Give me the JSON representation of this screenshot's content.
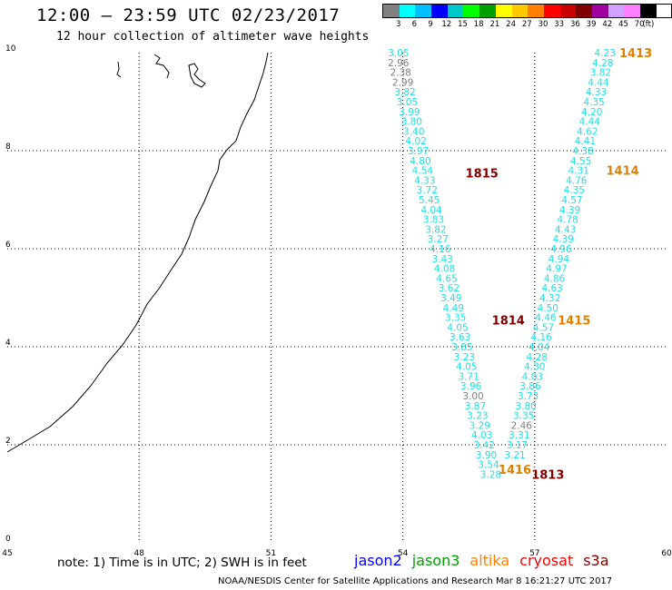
{
  "header": {
    "title": "12:00 – 23:59 UTC 02/23/2017",
    "subtitle": "12 hour collection of altimeter wave heights"
  },
  "legend": {
    "colors": [
      "#808080",
      "#00ffff",
      "#00bfff",
      "#0000ff",
      "#00c8c8",
      "#00ff00",
      "#00a000",
      "#ffff00",
      "#ffc800",
      "#ff8000",
      "#ff0000",
      "#c80000",
      "#800000",
      "#a000a0",
      "#d2a0ff",
      "#ff80ff",
      "#000000"
    ],
    "labels": [
      "3",
      "6",
      "9",
      "12",
      "15",
      "18",
      "21",
      "24",
      "27",
      "30",
      "33",
      "36",
      "39",
      "42",
      "45",
      "70",
      "(ft)"
    ]
  },
  "map": {
    "x_ticks": [
      "45",
      "48",
      "51",
      "54",
      "57",
      "60"
    ],
    "y_ticks": [
      "0",
      "2",
      "4",
      "6",
      "8",
      "10"
    ],
    "x_range": [
      45,
      60
    ],
    "y_range": [
      0,
      10
    ],
    "track_color": "#22e0e0",
    "alt_color": "#808080",
    "time_colors": {
      "cryosat": "#800000",
      "altika": "#e08000"
    },
    "tracks": [
      {
        "name": "track-west",
        "points": [
          {
            "lon": 53.9,
            "lat": 10.0,
            "v": "3.05",
            "c": "cyan"
          },
          {
            "lon": 53.9,
            "lat": 9.8,
            "v": "2.96",
            "c": "gray"
          },
          {
            "lon": 53.95,
            "lat": 9.6,
            "v": "2.38",
            "c": "gray"
          },
          {
            "lon": 54.0,
            "lat": 9.4,
            "v": "2.99",
            "c": "gray"
          },
          {
            "lon": 54.05,
            "lat": 9.2,
            "v": "3.82",
            "c": "cyan"
          },
          {
            "lon": 54.1,
            "lat": 9.0,
            "v": "3.05",
            "c": "cyan"
          },
          {
            "lon": 54.15,
            "lat": 8.8,
            "v": "3.99",
            "c": "cyan"
          },
          {
            "lon": 54.2,
            "lat": 8.6,
            "v": "3.80",
            "c": "cyan"
          },
          {
            "lon": 54.25,
            "lat": 8.4,
            "v": "3.40",
            "c": "cyan"
          },
          {
            "lon": 54.3,
            "lat": 8.2,
            "v": "4.02",
            "c": "cyan"
          },
          {
            "lon": 54.35,
            "lat": 8.0,
            "v": "3.97",
            "c": "cyan"
          },
          {
            "lon": 54.4,
            "lat": 7.8,
            "v": "4.80",
            "c": "cyan"
          },
          {
            "lon": 54.45,
            "lat": 7.6,
            "v": "4.54",
            "c": "cyan"
          },
          {
            "lon": 54.5,
            "lat": 7.4,
            "v": "4.33",
            "c": "cyan"
          },
          {
            "lon": 54.55,
            "lat": 7.2,
            "v": "3.72",
            "c": "cyan"
          },
          {
            "lon": 54.6,
            "lat": 7.0,
            "v": "5.45",
            "c": "cyan"
          },
          {
            "lon": 54.65,
            "lat": 6.8,
            "v": "4.04",
            "c": "cyan"
          },
          {
            "lon": 54.7,
            "lat": 6.6,
            "v": "3.83",
            "c": "cyan"
          },
          {
            "lon": 54.75,
            "lat": 6.4,
            "v": "3.82",
            "c": "cyan"
          },
          {
            "lon": 54.8,
            "lat": 6.2,
            "v": "3.27",
            "c": "cyan"
          },
          {
            "lon": 54.85,
            "lat": 6.0,
            "v": "4.16",
            "c": "cyan"
          },
          {
            "lon": 54.9,
            "lat": 5.8,
            "v": "3.43",
            "c": "cyan"
          },
          {
            "lon": 54.95,
            "lat": 5.6,
            "v": "4.08",
            "c": "cyan"
          },
          {
            "lon": 55.0,
            "lat": 5.4,
            "v": "4.65",
            "c": "cyan"
          },
          {
            "lon": 55.05,
            "lat": 5.2,
            "v": "3.62",
            "c": "cyan"
          },
          {
            "lon": 55.1,
            "lat": 5.0,
            "v": "3.49",
            "c": "cyan"
          },
          {
            "lon": 55.15,
            "lat": 4.8,
            "v": "4.49",
            "c": "cyan"
          },
          {
            "lon": 55.2,
            "lat": 4.6,
            "v": "3.35",
            "c": "cyan"
          },
          {
            "lon": 55.25,
            "lat": 4.4,
            "v": "4.05",
            "c": "cyan"
          },
          {
            "lon": 55.3,
            "lat": 4.2,
            "v": "3.63",
            "c": "cyan"
          },
          {
            "lon": 55.35,
            "lat": 4.0,
            "v": "3.85",
            "c": "cyan"
          },
          {
            "lon": 55.4,
            "lat": 3.8,
            "v": "3.23",
            "c": "cyan"
          },
          {
            "lon": 55.45,
            "lat": 3.6,
            "v": "4.05",
            "c": "cyan"
          },
          {
            "lon": 55.5,
            "lat": 3.4,
            "v": "3.71",
            "c": "cyan"
          },
          {
            "lon": 55.55,
            "lat": 3.2,
            "v": "3.96",
            "c": "cyan"
          },
          {
            "lon": 55.6,
            "lat": 3.0,
            "v": "3.00",
            "c": "gray"
          },
          {
            "lon": 55.65,
            "lat": 2.8,
            "v": "3.87",
            "c": "cyan"
          },
          {
            "lon": 55.7,
            "lat": 2.6,
            "v": "3.23",
            "c": "cyan"
          },
          {
            "lon": 55.75,
            "lat": 2.4,
            "v": "3.29",
            "c": "cyan"
          },
          {
            "lon": 55.8,
            "lat": 2.2,
            "v": "4.03",
            "c": "cyan"
          },
          {
            "lon": 55.85,
            "lat": 2.0,
            "v": "3.42",
            "c": "cyan"
          },
          {
            "lon": 55.9,
            "lat": 1.8,
            "v": "3.90",
            "c": "cyan"
          },
          {
            "lon": 55.95,
            "lat": 1.6,
            "v": "3.54",
            "c": "cyan"
          },
          {
            "lon": 56.0,
            "lat": 1.4,
            "v": "3.28",
            "c": "cyan"
          }
        ]
      },
      {
        "name": "track-east",
        "points": [
          {
            "lon": 58.6,
            "lat": 10.0,
            "v": "4.23",
            "c": "cyan"
          },
          {
            "lon": 58.55,
            "lat": 9.8,
            "v": "4.28",
            "c": "cyan"
          },
          {
            "lon": 58.5,
            "lat": 9.6,
            "v": "3.82",
            "c": "cyan"
          },
          {
            "lon": 58.45,
            "lat": 9.4,
            "v": "4.44",
            "c": "cyan"
          },
          {
            "lon": 58.4,
            "lat": 9.2,
            "v": "4.33",
            "c": "cyan"
          },
          {
            "lon": 58.35,
            "lat": 9.0,
            "v": "4.35",
            "c": "cyan"
          },
          {
            "lon": 58.3,
            "lat": 8.8,
            "v": "4.20",
            "c": "cyan"
          },
          {
            "lon": 58.25,
            "lat": 8.6,
            "v": "4.44",
            "c": "cyan"
          },
          {
            "lon": 58.2,
            "lat": 8.4,
            "v": "4.62",
            "c": "cyan"
          },
          {
            "lon": 58.15,
            "lat": 8.2,
            "v": "4.41",
            "c": "cyan"
          },
          {
            "lon": 58.1,
            "lat": 8.0,
            "v": "4.38",
            "c": "cyan"
          },
          {
            "lon": 58.05,
            "lat": 7.8,
            "v": "4.55",
            "c": "cyan"
          },
          {
            "lon": 58.0,
            "lat": 7.6,
            "v": "4.31",
            "c": "cyan"
          },
          {
            "lon": 57.95,
            "lat": 7.4,
            "v": "4.76",
            "c": "cyan"
          },
          {
            "lon": 57.9,
            "lat": 7.2,
            "v": "4.35",
            "c": "cyan"
          },
          {
            "lon": 57.85,
            "lat": 7.0,
            "v": "4.57",
            "c": "cyan"
          },
          {
            "lon": 57.8,
            "lat": 6.8,
            "v": "4.39",
            "c": "cyan"
          },
          {
            "lon": 57.75,
            "lat": 6.6,
            "v": "4.78",
            "c": "cyan"
          },
          {
            "lon": 57.7,
            "lat": 6.4,
            "v": "4.43",
            "c": "cyan"
          },
          {
            "lon": 57.65,
            "lat": 6.2,
            "v": "4.39",
            "c": "cyan"
          },
          {
            "lon": 57.6,
            "lat": 6.0,
            "v": "4.96",
            "c": "cyan"
          },
          {
            "lon": 57.55,
            "lat": 5.8,
            "v": "4.94",
            "c": "cyan"
          },
          {
            "lon": 57.5,
            "lat": 5.6,
            "v": "4.97",
            "c": "cyan"
          },
          {
            "lon": 57.45,
            "lat": 5.4,
            "v": "4.86",
            "c": "cyan"
          },
          {
            "lon": 57.4,
            "lat": 5.2,
            "v": "4.63",
            "c": "cyan"
          },
          {
            "lon": 57.35,
            "lat": 5.0,
            "v": "4.32",
            "c": "cyan"
          },
          {
            "lon": 57.3,
            "lat": 4.8,
            "v": "4.50",
            "c": "cyan"
          },
          {
            "lon": 57.25,
            "lat": 4.6,
            "v": "4.46",
            "c": "cyan"
          },
          {
            "lon": 57.2,
            "lat": 4.4,
            "v": "4.57",
            "c": "cyan"
          },
          {
            "lon": 57.15,
            "lat": 4.2,
            "v": "4.16",
            "c": "cyan"
          },
          {
            "lon": 57.1,
            "lat": 4.0,
            "v": "4.04",
            "c": "cyan"
          },
          {
            "lon": 57.05,
            "lat": 3.8,
            "v": "4.28",
            "c": "cyan"
          },
          {
            "lon": 57.0,
            "lat": 3.6,
            "v": "4.30",
            "c": "cyan"
          },
          {
            "lon": 56.95,
            "lat": 3.4,
            "v": "4.03",
            "c": "cyan"
          },
          {
            "lon": 56.9,
            "lat": 3.2,
            "v": "3.86",
            "c": "cyan"
          },
          {
            "lon": 56.85,
            "lat": 3.0,
            "v": "3.73",
            "c": "cyan"
          },
          {
            "lon": 56.8,
            "lat": 2.8,
            "v": "3.80",
            "c": "cyan"
          },
          {
            "lon": 56.75,
            "lat": 2.6,
            "v": "3.35",
            "c": "cyan"
          },
          {
            "lon": 56.7,
            "lat": 2.4,
            "v": "2.46",
            "c": "gray"
          },
          {
            "lon": 56.65,
            "lat": 2.2,
            "v": "3.31",
            "c": "cyan"
          },
          {
            "lon": 56.6,
            "lat": 2.0,
            "v": "3.17",
            "c": "cyan"
          },
          {
            "lon": 56.55,
            "lat": 1.8,
            "v": "3.21",
            "c": "cyan"
          }
        ]
      }
    ],
    "time_labels": [
      {
        "text": "1413",
        "sat": "altika",
        "lon": 59.3,
        "lat": 10.0
      },
      {
        "text": "1815",
        "sat": "cryosat",
        "lon": 55.8,
        "lat": 7.55
      },
      {
        "text": "1414",
        "sat": "altika",
        "lon": 59.0,
        "lat": 7.6
      },
      {
        "text": "1814",
        "sat": "cryosat",
        "lon": 56.4,
        "lat": 4.55
      },
      {
        "text": "1415",
        "sat": "altika",
        "lon": 57.9,
        "lat": 4.55
      },
      {
        "text": "1416",
        "sat": "altika",
        "lon": 56.55,
        "lat": 1.5
      },
      {
        "text": "1813",
        "sat": "cryosat",
        "lon": 57.3,
        "lat": 1.4
      }
    ]
  },
  "footer": {
    "note": "note: 1) Time is in UTC; 2) SWH is in feet",
    "satellites": [
      {
        "name": "jason2",
        "color": "#0000ff"
      },
      {
        "name": "jason3",
        "color": "#00a000"
      },
      {
        "name": "altika",
        "color": "#ff8000"
      },
      {
        "name": "cryosat",
        "color": "#ff0000"
      },
      {
        "name": "s3a",
        "color": "#800000"
      }
    ],
    "credit": "NOAA/NESDIS Center for Satellite Applications and Research   Mar  8 16:21:27 UTC 2017"
  }
}
